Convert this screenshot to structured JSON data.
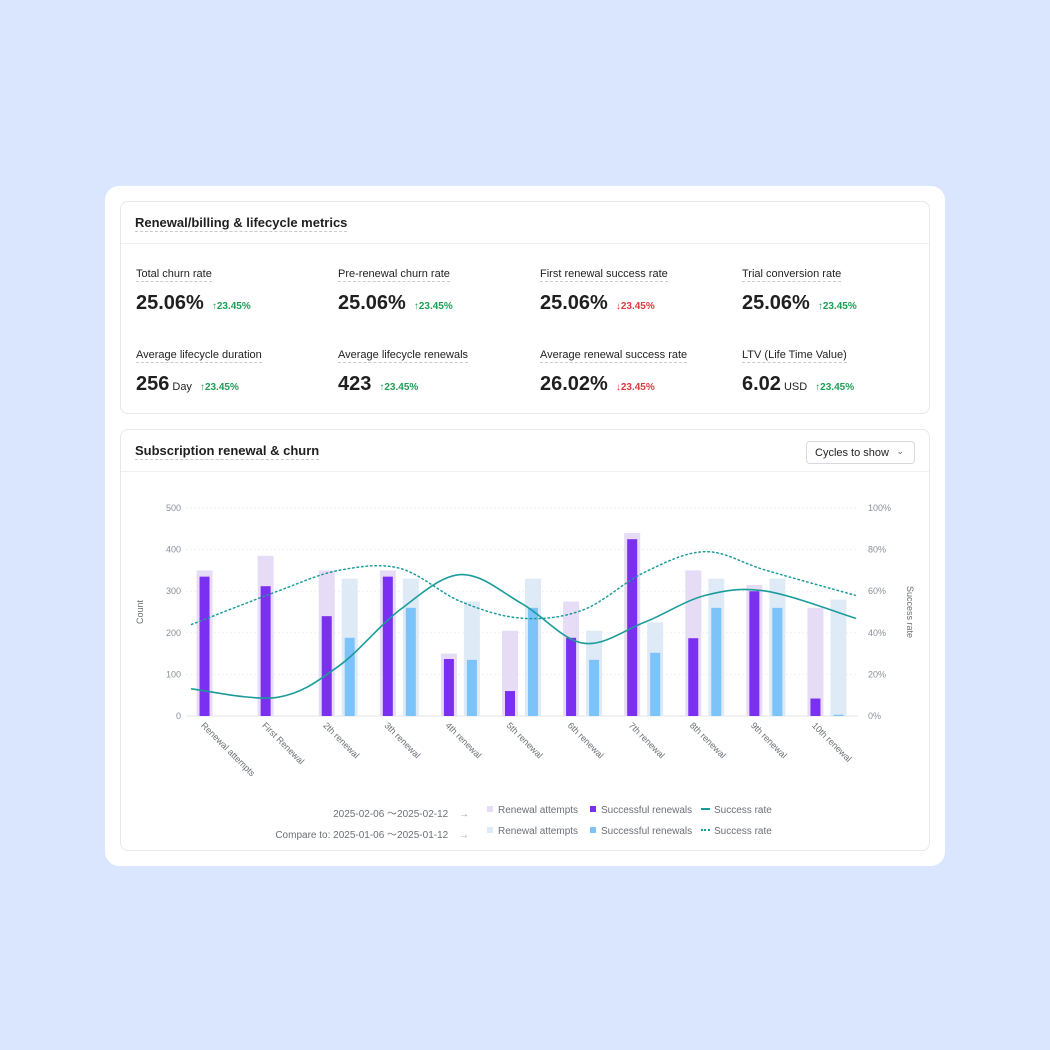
{
  "metrics_panel": {
    "title": "Renewal/billing & lifecycle metrics",
    "metrics": [
      {
        "label": "Total churn rate",
        "value": "25.06%",
        "unit": "",
        "delta": "↑23.45%",
        "trend": "up"
      },
      {
        "label": "Pre-renewal churn rate",
        "value": "25.06%",
        "unit": "",
        "delta": "↑23.45%",
        "trend": "up"
      },
      {
        "label": "First renewal success rate",
        "value": "25.06%",
        "unit": "",
        "delta": "↓23.45%",
        "trend": "down"
      },
      {
        "label": "Trial conversion rate",
        "value": "25.06%",
        "unit": "",
        "delta": "↑23.45%",
        "trend": "up"
      },
      {
        "label": "Average lifecycle duration",
        "value": "256",
        "unit": "Day",
        "delta": "↑23.45%",
        "trend": "up"
      },
      {
        "label": "Average lifecycle renewals",
        "value": "423",
        "unit": "",
        "delta": "↑23.45%",
        "trend": "up"
      },
      {
        "label": "Average renewal success rate",
        "value": "26.02%",
        "unit": "",
        "delta": "↓23.45%",
        "trend": "down"
      },
      {
        "label": "LTV (Life Time Value)",
        "value": "6.02",
        "unit": "USD",
        "delta": "↑23.45%",
        "trend": "up"
      }
    ],
    "colors": {
      "up": "#1f9d55",
      "down": "#e0393e"
    }
  },
  "chart_panel": {
    "title": "Subscription renewal & churn",
    "dropdown_label": "Cycles to show",
    "dropdown_icon": "chevron-down-icon"
  },
  "chart_data": {
    "type": "bar",
    "categories": [
      "Renewal attempts",
      "First Renewal",
      "2th renewal",
      "3th renewal",
      "4th renewal",
      "5th renewal",
      "6th renewal",
      "7th renewal",
      "8th renewal",
      "9th renewal",
      "10th renewal"
    ],
    "y_left": {
      "label": "Count",
      "ticks": [
        "0",
        "100",
        "200",
        "300",
        "400",
        "500"
      ],
      "range": [
        0,
        500
      ]
    },
    "y_right": {
      "label": "Success rate",
      "ticks": [
        "0%",
        "20%",
        "40%",
        "60%",
        "80%",
        "100%"
      ],
      "range": [
        0,
        100
      ]
    },
    "grid": true,
    "legend_position": "bottom",
    "series": [
      {
        "name": "Renewal attempts",
        "period": "current",
        "kind": "bar",
        "color": "#e6dcf5",
        "values": [
          350,
          385,
          350,
          350,
          150,
          205,
          275,
          440,
          350,
          315,
          260
        ]
      },
      {
        "name": "Successful renewals",
        "period": "current",
        "kind": "bar",
        "color": "#7b2ff0",
        "values": [
          335,
          312,
          240,
          335,
          137,
          60,
          188,
          425,
          187,
          300,
          42
        ]
      },
      {
        "name": "Renewal attempts",
        "period": "compare",
        "kind": "bar",
        "color": "#dfeaf7",
        "values": [
          null,
          null,
          330,
          330,
          275,
          330,
          205,
          225,
          330,
          330,
          280
        ]
      },
      {
        "name": "Successful renewals",
        "period": "compare",
        "kind": "bar",
        "color": "#7cc3fa",
        "values": [
          null,
          null,
          188,
          260,
          135,
          260,
          135,
          152,
          260,
          260,
          3
        ]
      },
      {
        "name": "Success rate",
        "period": "current",
        "kind": "line",
        "color": "#1a9c9a",
        "values": [
          13,
          9,
          24,
          51,
          68,
          54,
          35,
          45,
          58,
          60,
          47
        ]
      },
      {
        "name": "Success rate",
        "period": "compare",
        "kind": "line-dotted",
        "color": "#1a9c9a",
        "values": [
          44,
          60,
          70,
          71,
          55,
          47,
          51,
          69,
          79,
          70,
          58
        ]
      }
    ],
    "legend": [
      {
        "range": "2025-02-06 ～2025-02-12",
        "items": [
          "Renewal attempts",
          "Successful renewals",
          "Success rate"
        ]
      },
      {
        "range": "Compare to: 2025-01-06 ～2025-01-12",
        "items": [
          "Renewal attempts",
          "Successful renewals",
          "Success rate"
        ]
      }
    ]
  }
}
